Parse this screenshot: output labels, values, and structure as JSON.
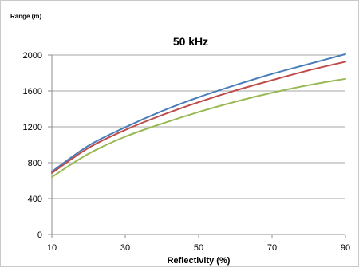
{
  "chart_data": {
    "type": "line",
    "title": "50 kHz",
    "xlabel": "Reflectivity (%)",
    "ylabel": "Range (m)",
    "xlim": [
      10,
      90
    ],
    "ylim": [
      0,
      2000
    ],
    "x_ticks": [
      10,
      30,
      50,
      70,
      90
    ],
    "y_ticks": [
      0,
      400,
      800,
      1200,
      1600,
      2000
    ],
    "grid": "horizontal",
    "legend": "none",
    "series": [
      {
        "color": "#4a7ebb",
        "x": [
          10,
          20,
          30,
          40,
          50,
          60,
          70,
          80,
          90
        ],
        "values": [
          700,
          990,
          1195,
          1375,
          1530,
          1665,
          1790,
          1900,
          2010
        ]
      },
      {
        "color": "#be4b48",
        "x": [
          10,
          20,
          30,
          40,
          50,
          60,
          70,
          80,
          90
        ],
        "values": [
          685,
          965,
          1165,
          1330,
          1475,
          1605,
          1720,
          1830,
          1925
        ]
      },
      {
        "color": "#98b954",
        "x": [
          10,
          20,
          30,
          40,
          50,
          60,
          70,
          80,
          90
        ],
        "values": [
          640,
          900,
          1090,
          1235,
          1365,
          1480,
          1580,
          1665,
          1735
        ]
      }
    ]
  }
}
